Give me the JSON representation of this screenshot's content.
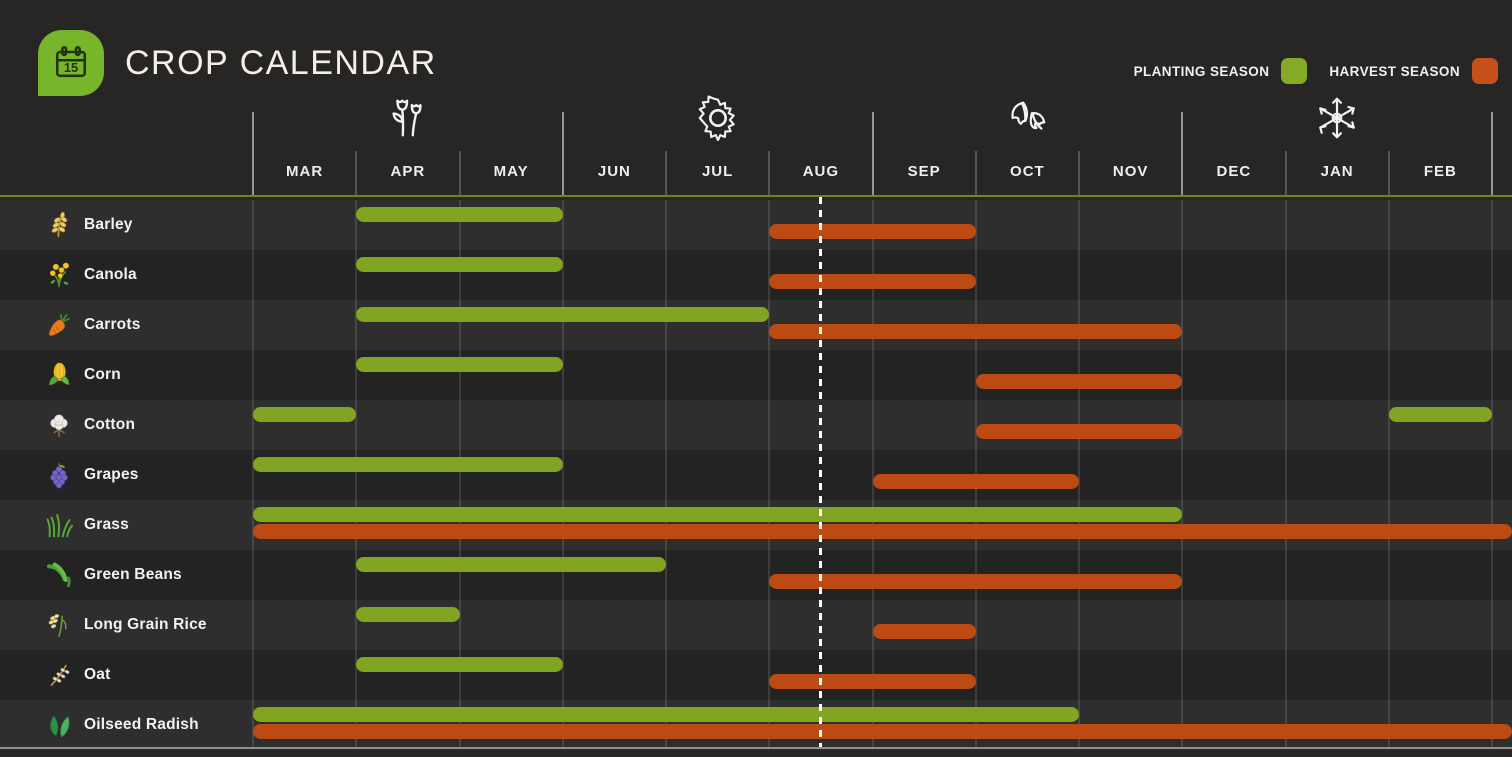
{
  "header": {
    "title": "CROP CALENDAR",
    "logo_icon": "calendar-icon",
    "logo_day": "15"
  },
  "legend": [
    {
      "label": "PLANTING SEASON",
      "color": "#85AA26"
    },
    {
      "label": "HARVEST SEASON",
      "color": "#C7501A"
    }
  ],
  "chart_data": {
    "type": "gantt",
    "title": "CROP CALENDAR",
    "months": [
      "MAR",
      "APR",
      "MAY",
      "JUN",
      "JUL",
      "AUG",
      "SEP",
      "OCT",
      "NOV",
      "DEC",
      "JAN",
      "FEB"
    ],
    "season_icons": [
      {
        "name": "spring-flowers-icon",
        "above_month": "APR"
      },
      {
        "name": "summer-sun-icon",
        "above_month": "JUL"
      },
      {
        "name": "autumn-leaves-icon",
        "above_month": "OCT"
      },
      {
        "name": "winter-snowflake-icon",
        "above_month": "JAN"
      }
    ],
    "planting_color": "#81A522",
    "harvest_color": "#BC4A12",
    "today_line": {
      "month": "AUG",
      "fraction": 0.5
    },
    "crops": [
      {
        "name": "Barley",
        "icon": "barley-icon",
        "planting": [
          [
            "APR",
            "MAY"
          ]
        ],
        "harvest": [
          [
            "AUG",
            "SEP"
          ]
        ]
      },
      {
        "name": "Canola",
        "icon": "canola-icon",
        "planting": [
          [
            "APR",
            "MAY"
          ]
        ],
        "harvest": [
          [
            "AUG",
            "SEP"
          ]
        ]
      },
      {
        "name": "Carrots",
        "icon": "carrot-icon",
        "planting": [
          [
            "APR",
            "JUL"
          ]
        ],
        "harvest": [
          [
            "AUG",
            "NOV"
          ]
        ]
      },
      {
        "name": "Corn",
        "icon": "corn-icon",
        "planting": [
          [
            "APR",
            "MAY"
          ]
        ],
        "harvest": [
          [
            "OCT",
            "NOV"
          ]
        ]
      },
      {
        "name": "Cotton",
        "icon": "cotton-icon",
        "planting": [
          [
            "MAR",
            "MAR"
          ],
          [
            "FEB",
            "FEB"
          ]
        ],
        "harvest": [
          [
            "OCT",
            "NOV"
          ]
        ]
      },
      {
        "name": "Grapes",
        "icon": "grapes-icon",
        "planting": [
          [
            "MAR",
            "MAY"
          ]
        ],
        "harvest": [
          [
            "SEP",
            "OCT"
          ]
        ]
      },
      {
        "name": "Grass",
        "icon": "grass-icon",
        "planting": [
          [
            "MAR",
            "NOV"
          ]
        ],
        "harvest": [
          [
            "MAR",
            "FEB"
          ]
        ],
        "harvest_full_bleed": true
      },
      {
        "name": "Green Beans",
        "icon": "green-beans-icon",
        "planting": [
          [
            "APR",
            "JUN"
          ]
        ],
        "harvest": [
          [
            "AUG",
            "NOV"
          ]
        ]
      },
      {
        "name": "Long Grain Rice",
        "icon": "rice-icon",
        "planting": [
          [
            "APR",
            "APR"
          ]
        ],
        "harvest": [
          [
            "SEP",
            "SEP"
          ]
        ]
      },
      {
        "name": "Oat",
        "icon": "oat-icon",
        "planting": [
          [
            "APR",
            "MAY"
          ]
        ],
        "harvest": [
          [
            "AUG",
            "SEP"
          ]
        ]
      },
      {
        "name": "Oilseed Radish",
        "icon": "oilseed-radish-icon",
        "planting": [
          [
            "MAR",
            "OCT"
          ]
        ],
        "harvest": [
          [
            "MAR",
            "FEB"
          ]
        ],
        "harvest_full_bleed": true
      }
    ]
  }
}
